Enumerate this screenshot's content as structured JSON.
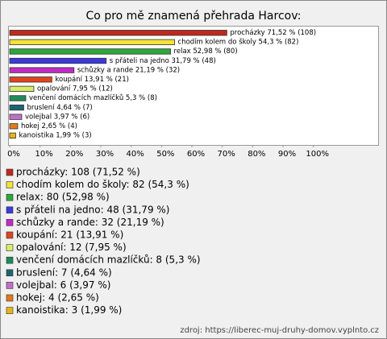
{
  "chart_data": {
    "type": "bar",
    "orientation": "horizontal",
    "title": "Co pro mě znamená přehrada Harcov:",
    "categories": [
      "procházky",
      "chodím kolem do školy",
      "relax",
      "s přáteli na jedno",
      "schůzky a rande",
      "koupání",
      "opalování",
      "venčení domácích mazlíčků",
      "bruslení",
      "volejbal",
      "hokej",
      "kanoistika"
    ],
    "values": [
      71.52,
      54.3,
      52.98,
      31.79,
      21.19,
      13.91,
      7.95,
      5.3,
      4.64,
      3.97,
      2.65,
      1.99
    ],
    "value_labels": [
      "procházky 71,52 % (108)",
      "chodím kolem do školy 54,3 % (82)",
      "relax 52,98 % (80)",
      "s přáteli na jedno 31,79 % (48)",
      "schůzky a rande 21,19 % (32)",
      "koupání 13,91 % (21)",
      "opalování 7,95 % (12)",
      "venčení domácích mazlíčků 5,3 % (8)",
      "bruslení 4,64 % (7)",
      "volejbal 3,97 % (6)",
      "hokej 2,65 % (4)",
      "kanoistika 1,99 % (3)"
    ],
    "legend_labels": [
      "procházky: 108 (71,52 %)",
      "chodím kolem do školy: 82 (54,3 %)",
      "relax: 80 (52,98 %)",
      "s přáteli na jedno: 48 (31,79 %)",
      "schůzky a rande: 32 (21,19 %)",
      "koupání: 21 (13,91 %)",
      "opalování: 12 (7,95 %)",
      "venčení domácích mazlíčků: 8 (5,3 %)",
      "bruslení: 7 (4,64 %)",
      "volejbal: 6 (3,97 %)",
      "hokej: 4 (2,65 %)",
      "kanoistika: 3 (1,99 %)"
    ],
    "colors": [
      "#c0281c",
      "#f4e13a",
      "#2ba83a",
      "#3a3ae0",
      "#c22ac6",
      "#e0441e",
      "#d8ec6a",
      "#1f8a5a",
      "#1e6470",
      "#c070c8",
      "#e07a1c",
      "#e8b418"
    ],
    "xlim": [
      0,
      120
    ],
    "xticks": [
      {
        "value": 0,
        "label": "0%"
      },
      {
        "value": 10,
        "label": "10%"
      },
      {
        "value": 20,
        "label": "20%"
      },
      {
        "value": 30,
        "label": "30%"
      },
      {
        "value": 40,
        "label": "40%"
      },
      {
        "value": 50,
        "label": "50%"
      },
      {
        "value": 60,
        "label": "60%"
      },
      {
        "value": 70,
        "label": "70%"
      },
      {
        "value": 80,
        "label": "80%"
      },
      {
        "value": 90,
        "label": "90%"
      },
      {
        "value": 100,
        "label": "100%"
      }
    ],
    "source": "zdroj: https://liberec-muj-druhy-domov.vyplnto.cz"
  }
}
